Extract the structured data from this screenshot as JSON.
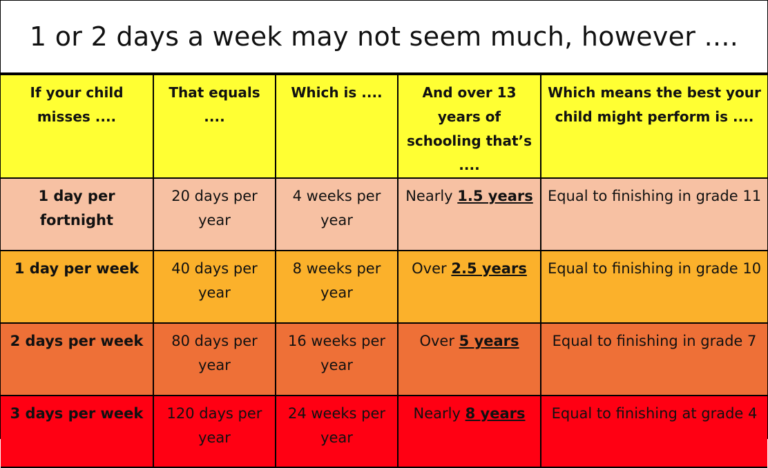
{
  "title": "1 or 2 days a week may not seem much, however ....",
  "colors": {
    "header_bg": "#ffff33",
    "row_bg": [
      "#f7c1a3",
      "#fbb12b",
      "#ee7037",
      "#ff0013"
    ]
  },
  "headers": [
    "If your child misses ....",
    "That equals ....",
    "Which is ....",
    "And over 13 years of schooling that’s ....",
    "Which means the best your child might perform is ...."
  ],
  "rows": [
    {
      "misses": "1 day per fortnight",
      "equals": "20 days per year",
      "which_is": "4 weeks per year",
      "over_prefix": "Nearly",
      "over_amount": "1.5 years",
      "perform": "Equal to finishing in grade 11"
    },
    {
      "misses": "1 day per week",
      "equals": "40 days per year",
      "which_is": "8 weeks per year",
      "over_prefix": "Over",
      "over_amount": "2.5 years",
      "perform": "Equal to finishing in grade 10"
    },
    {
      "misses": "2 days per week",
      "equals": "80 days per year",
      "which_is": "16 weeks per year",
      "over_prefix": "Over",
      "over_amount": "5 years",
      "perform": "Equal to finishing in grade 7"
    },
    {
      "misses": "3 days per week",
      "equals": "120 days per year",
      "which_is": "24 weeks per year",
      "over_prefix": "Nearly",
      "over_amount": "8 years",
      "perform": "Equal to finishing at grade 4"
    }
  ]
}
